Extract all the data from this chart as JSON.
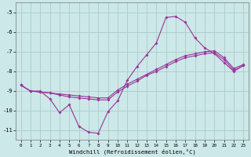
{
  "xlabel": "Windchill (Refroidissement éolien,°C)",
  "bg_color": "#cce8e8",
  "line_color": "#993399",
  "grid_color": "#aacccc",
  "xlim": [
    -0.5,
    23.5
  ],
  "ylim": [
    -11.5,
    -4.5
  ],
  "yticks": [
    -11,
    -10,
    -9,
    -8,
    -7,
    -6,
    -5
  ],
  "xticks": [
    0,
    1,
    2,
    3,
    4,
    5,
    6,
    7,
    8,
    9,
    10,
    11,
    12,
    13,
    14,
    15,
    16,
    17,
    18,
    19,
    20,
    21,
    22,
    23
  ],
  "line1_x": [
    0,
    1,
    2,
    3,
    4,
    5,
    6,
    7,
    8,
    9,
    10,
    11,
    12,
    13,
    14,
    15,
    16,
    17,
    18,
    19,
    20,
    21,
    22,
    23
  ],
  "line1_y": [
    -8.7,
    -9.0,
    -9.0,
    -9.4,
    -10.1,
    -9.7,
    -10.8,
    -11.1,
    -11.15,
    -10.05,
    -9.5,
    -8.45,
    -7.75,
    -7.15,
    -6.55,
    -5.25,
    -5.2,
    -5.5,
    -6.3,
    -6.8,
    -7.1,
    -7.55,
    -8.0,
    -7.7
  ],
  "line2_x": [
    0,
    1,
    2,
    3,
    4,
    5,
    6,
    7,
    8,
    9,
    10,
    11,
    12,
    13,
    14,
    15,
    16,
    17,
    18,
    19,
    20,
    21,
    22,
    23
  ],
  "line2_y": [
    -8.7,
    -9.0,
    -9.05,
    -9.1,
    -9.2,
    -9.3,
    -9.35,
    -9.4,
    -9.45,
    -9.45,
    -9.05,
    -8.75,
    -8.5,
    -8.2,
    -8.0,
    -7.75,
    -7.5,
    -7.3,
    -7.2,
    -7.1,
    -7.05,
    -7.4,
    -7.95,
    -7.7
  ],
  "line3_x": [
    0,
    1,
    2,
    3,
    4,
    5,
    6,
    7,
    8,
    9,
    10,
    11,
    12,
    13,
    14,
    15,
    16,
    17,
    18,
    19,
    20,
    21,
    22,
    23
  ],
  "line3_y": [
    -8.7,
    -9.0,
    -9.05,
    -9.1,
    -9.15,
    -9.2,
    -9.25,
    -9.3,
    -9.35,
    -9.35,
    -8.95,
    -8.65,
    -8.4,
    -8.15,
    -7.9,
    -7.65,
    -7.4,
    -7.2,
    -7.1,
    -7.0,
    -6.95,
    -7.3,
    -7.85,
    -7.65
  ]
}
